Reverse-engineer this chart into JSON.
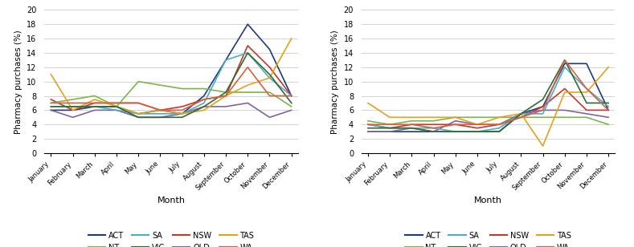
{
  "months": [
    "January",
    "February",
    "March",
    "April",
    "May",
    "June",
    "July",
    "August",
    "September",
    "October",
    "November",
    "December"
  ],
  "chart1": {
    "ACT": [
      6.0,
      6.0,
      6.5,
      6.5,
      5.5,
      6.0,
      5.5,
      8.0,
      13.0,
      18.0,
      14.5,
      8.0
    ],
    "NSW": [
      7.5,
      6.0,
      7.0,
      7.0,
      7.0,
      6.0,
      6.5,
      7.5,
      8.0,
      15.0,
      12.0,
      8.0
    ],
    "NT": [
      7.0,
      7.5,
      8.0,
      6.5,
      10.0,
      9.5,
      9.0,
      9.0,
      8.5,
      8.5,
      8.5,
      6.5
    ],
    "QLD": [
      6.0,
      5.0,
      6.0,
      6.0,
      5.0,
      5.0,
      5.5,
      6.5,
      6.5,
      7.0,
      5.0,
      6.0
    ],
    "SA": [
      6.5,
      6.5,
      6.5,
      6.0,
      5.5,
      5.5,
      5.5,
      7.0,
      13.0,
      14.0,
      10.5,
      8.0
    ],
    "TAS": [
      11.0,
      6.0,
      7.5,
      6.5,
      5.5,
      6.0,
      5.5,
      6.0,
      8.0,
      9.5,
      10.5,
      16.0
    ],
    "VIC": [
      6.5,
      6.5,
      6.5,
      6.5,
      5.0,
      5.0,
      5.0,
      6.5,
      8.5,
      14.0,
      11.0,
      7.0
    ],
    "WA": [
      7.0,
      7.0,
      7.0,
      7.0,
      7.0,
      6.0,
      6.0,
      7.5,
      8.0,
      12.0,
      8.0,
      8.0
    ]
  },
  "chart2": {
    "ACT": [
      3.0,
      3.0,
      3.0,
      3.0,
      3.0,
      3.0,
      3.0,
      5.5,
      6.5,
      12.5,
      12.5,
      6.0
    ],
    "NSW": [
      4.0,
      3.5,
      4.0,
      4.0,
      4.0,
      3.5,
      4.0,
      5.0,
      6.5,
      9.0,
      6.0,
      6.0
    ],
    "NT": [
      4.5,
      4.0,
      4.5,
      4.5,
      5.0,
      5.0,
      5.0,
      5.0,
      5.0,
      5.0,
      5.0,
      4.0
    ],
    "QLD": [
      3.0,
      3.0,
      3.5,
      3.0,
      4.5,
      4.0,
      4.0,
      5.5,
      6.0,
      6.0,
      5.5,
      5.0
    ],
    "SA": [
      4.0,
      3.5,
      3.5,
      3.5,
      3.0,
      3.0,
      3.5,
      5.5,
      5.5,
      12.0,
      9.0,
      6.5
    ],
    "TAS": [
      7.0,
      5.0,
      5.0,
      5.0,
      5.0,
      4.0,
      5.0,
      5.5,
      1.0,
      8.5,
      8.5,
      12.0
    ],
    "VIC": [
      3.5,
      3.5,
      3.5,
      3.0,
      3.0,
      3.0,
      3.0,
      5.5,
      7.5,
      13.0,
      7.0,
      7.0
    ],
    "WA": [
      4.0,
      4.0,
      4.0,
      3.5,
      4.0,
      4.0,
      4.0,
      5.0,
      6.0,
      13.0,
      9.0,
      6.0
    ]
  },
  "colors": {
    "ACT": "#1f3a7a",
    "NSW": "#c0392b",
    "NT": "#7ab648",
    "QLD": "#8064a2",
    "SA": "#4bacc6",
    "TAS": "#e6a118",
    "VIC": "#2e6b2e",
    "WA": "#d95f43"
  },
  "ylim": [
    0,
    20
  ],
  "yticks": [
    0,
    2,
    4,
    6,
    8,
    10,
    12,
    14,
    16,
    18,
    20
  ],
  "ylabel": "Pharmacy purchases (%)",
  "xlabel": "Month",
  "legend_order_row1": [
    "ACT",
    "NT",
    "SA",
    "VIC"
  ],
  "legend_order_row2": [
    "NSW",
    "QLD",
    "TAS",
    "WA"
  ]
}
